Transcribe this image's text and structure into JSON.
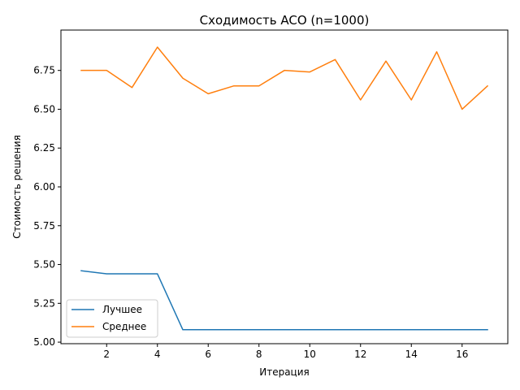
{
  "chart_data": {
    "type": "line",
    "title": "Сходимость ACO (n=1000)",
    "xlabel": "Итерация",
    "ylabel": "Стоимость решения",
    "xlim": [
      0.2,
      17.8
    ],
    "ylim": [
      4.99,
      7.01
    ],
    "xticks": [
      2,
      4,
      6,
      8,
      10,
      12,
      14,
      16
    ],
    "yticks": [
      5.0,
      5.25,
      5.5,
      5.75,
      6.0,
      6.25,
      6.5,
      6.75
    ],
    "ytick_labels": [
      "5.00",
      "5.25",
      "5.50",
      "5.75",
      "6.00",
      "6.25",
      "6.50",
      "6.75"
    ],
    "grid": false,
    "legend_position": "lower-left",
    "x": [
      1,
      2,
      3,
      4,
      5,
      6,
      7,
      8,
      9,
      10,
      11,
      12,
      13,
      14,
      15,
      16,
      17
    ],
    "series": [
      {
        "name": "Лучшее",
        "color": "#1f77b4",
        "values": [
          5.46,
          5.44,
          5.44,
          5.44,
          5.08,
          5.08,
          5.08,
          5.08,
          5.08,
          5.08,
          5.08,
          5.08,
          5.08,
          5.08,
          5.08,
          5.08,
          5.08
        ]
      },
      {
        "name": "Среднее",
        "color": "#ff7f0e",
        "values": [
          6.75,
          6.75,
          6.64,
          6.9,
          6.7,
          6.6,
          6.65,
          6.65,
          6.75,
          6.74,
          6.82,
          6.56,
          6.81,
          6.56,
          6.87,
          6.5,
          6.65
        ]
      }
    ]
  }
}
